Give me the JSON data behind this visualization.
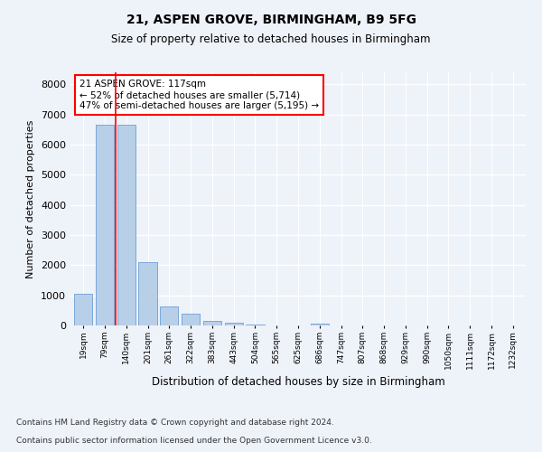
{
  "title1": "21, ASPEN GROVE, BIRMINGHAM, B9 5FG",
  "title2": "Size of property relative to detached houses in Birmingham",
  "xlabel": "Distribution of detached houses by size in Birmingham",
  "ylabel": "Number of detached properties",
  "categories": [
    "19sqm",
    "79sqm",
    "140sqm",
    "201sqm",
    "261sqm",
    "322sqm",
    "383sqm",
    "443sqm",
    "504sqm",
    "565sqm",
    "625sqm",
    "686sqm",
    "747sqm",
    "807sqm",
    "868sqm",
    "929sqm",
    "990sqm",
    "1050sqm",
    "1111sqm",
    "1172sqm",
    "1232sqm"
  ],
  "values": [
    1050,
    6650,
    6650,
    2100,
    620,
    380,
    150,
    80,
    40,
    0,
    0,
    50,
    0,
    0,
    0,
    0,
    0,
    0,
    0,
    0,
    0
  ],
  "bar_color": "#b8cfe8",
  "bar_edge_color": "#6a9fd8",
  "property_size": 117,
  "annotation_text": "21 ASPEN GROVE: 117sqm\n← 52% of detached houses are smaller (5,714)\n47% of semi-detached houses are larger (5,195) →",
  "annotation_box_color": "white",
  "annotation_box_edge_color": "red",
  "vline_color": "red",
  "ylim": [
    0,
    8400
  ],
  "yticks": [
    0,
    1000,
    2000,
    3000,
    4000,
    5000,
    6000,
    7000,
    8000
  ],
  "footer1": "Contains HM Land Registry data © Crown copyright and database right 2024.",
  "footer2": "Contains public sector information licensed under the Open Government Licence v3.0.",
  "bg_color": "#eef2f9",
  "plot_bg_color": "#eef2f9"
}
